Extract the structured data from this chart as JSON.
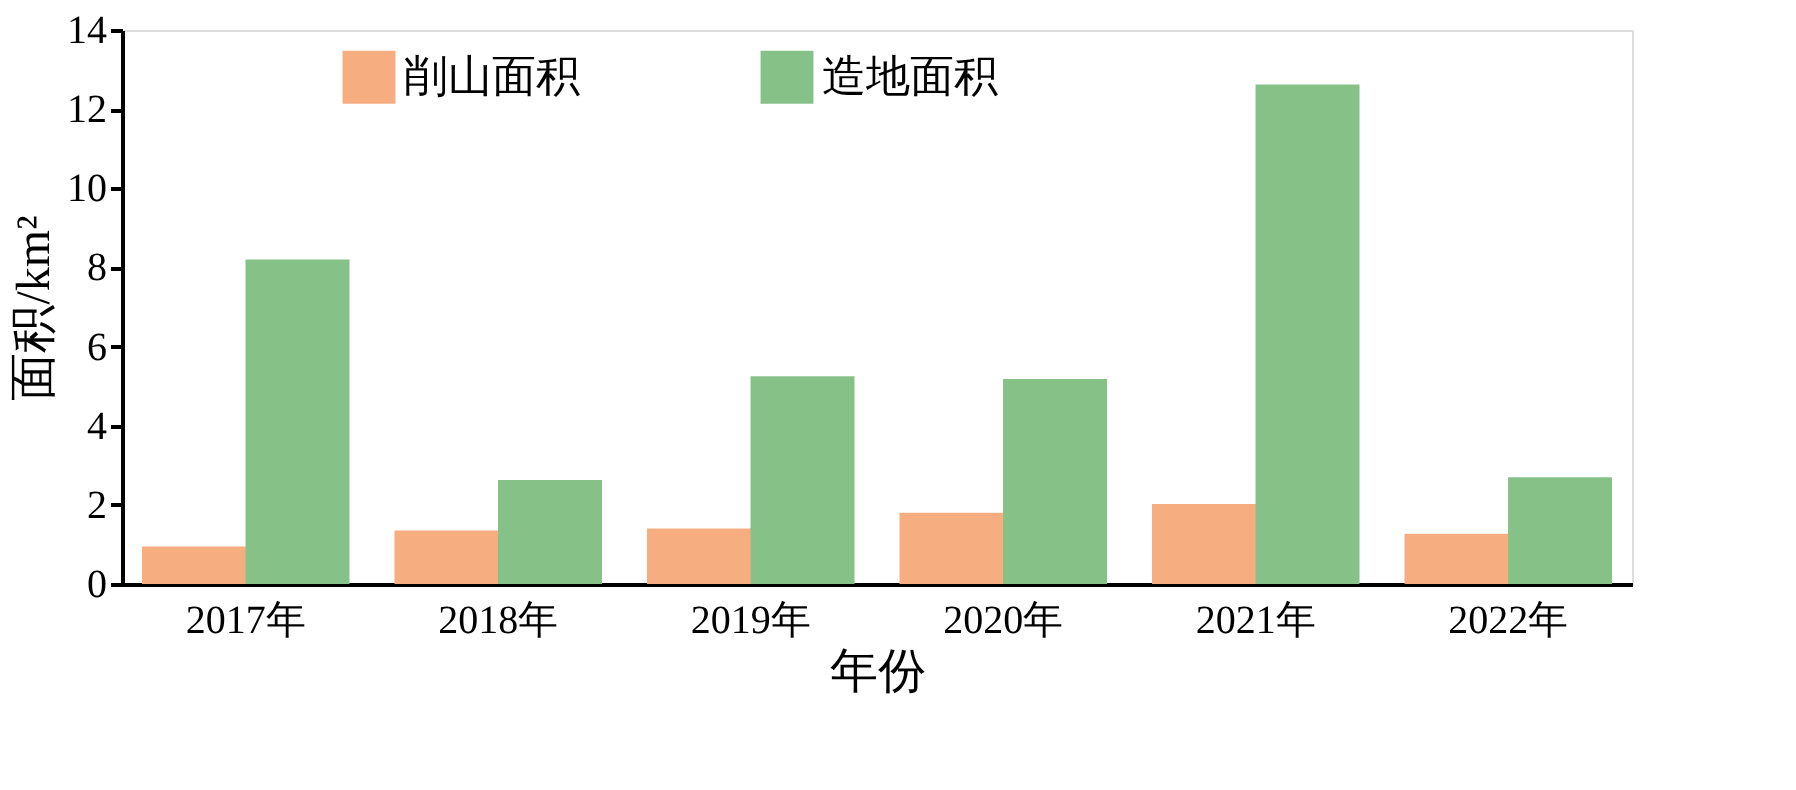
{
  "chart_data": {
    "type": "bar",
    "xlabel": "年份",
    "ylabel": "面积/km²",
    "categories": [
      "2017年",
      "2018年",
      "2019年",
      "2020年",
      "2021年",
      "2022年"
    ],
    "series": [
      {
        "name": "削山面积",
        "color": "#f6ae80",
        "values": [
          0.95,
          1.35,
          1.4,
          1.8,
          2.02,
          1.27
        ]
      },
      {
        "name": "造地面积",
        "color": "#86c288",
        "values": [
          8.2,
          2.63,
          5.25,
          5.18,
          12.62,
          2.7
        ]
      }
    ],
    "ylim": [
      0,
      14
    ],
    "yticks": [
      0,
      2,
      4,
      6,
      8,
      10,
      12,
      14
    ],
    "grid": false,
    "legend": "top"
  }
}
